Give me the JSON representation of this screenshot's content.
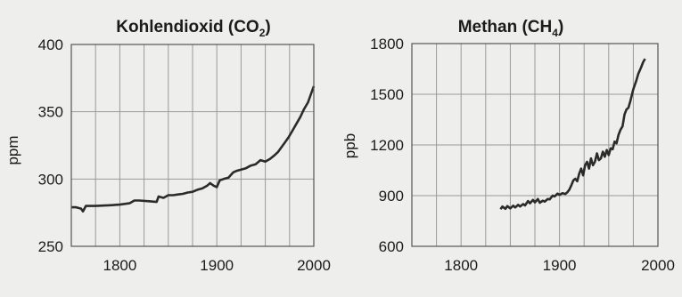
{
  "chart_data": [
    {
      "type": "line",
      "title": {
        "main": "Kohlendioxid (CO",
        "sub": "2",
        "end": ")"
      },
      "xlabel": "",
      "ylabel": "ppm",
      "xlim": [
        1750,
        2000
      ],
      "ylim": [
        250,
        400
      ],
      "xticks": [
        1800,
        1900,
        2000
      ],
      "yticks": [
        250,
        300,
        350,
        400
      ],
      "grid": true,
      "colors": {
        "line": "#2b2b2b",
        "grid": "#9a9a9a",
        "frame": "#555555"
      },
      "series": [
        {
          "x": [
            1750,
            1755,
            1760,
            1762,
            1765,
            1768,
            1775,
            1790,
            1800,
            1810,
            1815,
            1820,
            1830,
            1838,
            1840,
            1845,
            1850,
            1855,
            1860,
            1865,
            1870,
            1875,
            1880,
            1885,
            1890,
            1893,
            1897,
            1900,
            1903,
            1907,
            1912,
            1917,
            1920,
            1925,
            1930,
            1935,
            1940,
            1945,
            1950,
            1955,
            1960,
            1963,
            1967,
            1970,
            1974,
            1978,
            1982,
            1986,
            1990,
            1994,
            1998,
            2000
          ],
          "y": [
            279,
            279,
            278,
            276,
            280,
            280,
            280,
            280.5,
            281,
            282,
            284,
            284,
            283.5,
            283,
            287,
            286,
            288,
            288,
            288.5,
            289,
            290,
            290.5,
            292,
            293,
            295,
            297,
            295,
            294,
            299,
            300,
            301,
            305,
            306,
            307,
            308,
            310,
            311,
            314,
            313,
            315,
            318,
            320,
            324,
            327,
            331,
            336,
            341,
            346,
            352,
            357,
            365,
            369
          ]
        }
      ]
    },
    {
      "type": "line",
      "title": {
        "main": "Methan (CH",
        "sub": "4",
        "end": ")"
      },
      "xlabel": "",
      "ylabel": "ppb",
      "xlim": [
        1750,
        2000
      ],
      "ylim": [
        600,
        1800
      ],
      "xticks": [
        1800,
        1900,
        2000
      ],
      "yticks": [
        600,
        900,
        1200,
        1500,
        1800
      ],
      "grid": true,
      "colors": {
        "line": "#2b2b2b",
        "grid": "#9a9a9a",
        "frame": "#555555"
      },
      "series": [
        {
          "x": [
            1840,
            1842,
            1845,
            1847,
            1850,
            1853,
            1855,
            1858,
            1860,
            1863,
            1865,
            1868,
            1870,
            1873,
            1875,
            1878,
            1880,
            1883,
            1885,
            1888,
            1890,
            1893,
            1895,
            1898,
            1900,
            1903,
            1906,
            1908,
            1910,
            1912,
            1914,
            1916,
            1918,
            1920,
            1922,
            1924,
            1926,
            1928,
            1930,
            1932,
            1934,
            1936,
            1938,
            1940,
            1942,
            1944,
            1946,
            1948,
            1950,
            1952,
            1954,
            1956,
            1958,
            1960,
            1962,
            1964,
            1966,
            1968,
            1970,
            1972,
            1975,
            1978,
            1980,
            1983,
            1985,
            1987
          ],
          "y": [
            820,
            835,
            822,
            838,
            825,
            840,
            830,
            845,
            836,
            850,
            842,
            868,
            855,
            875,
            860,
            880,
            858,
            870,
            865,
            880,
            878,
            900,
            895,
            912,
            905,
            915,
            910,
            920,
            935,
            960,
            990,
            1000,
            985,
            1030,
            1060,
            1020,
            1080,
            1100,
            1060,
            1120,
            1080,
            1100,
            1150,
            1110,
            1120,
            1160,
            1130,
            1170,
            1140,
            1180,
            1175,
            1220,
            1210,
            1260,
            1290,
            1310,
            1380,
            1410,
            1420,
            1460,
            1530,
            1580,
            1620,
            1660,
            1690,
            1710
          ]
        }
      ]
    }
  ]
}
